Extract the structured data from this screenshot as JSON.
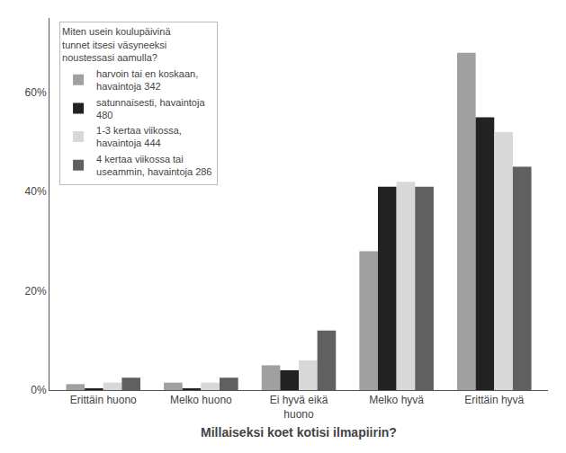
{
  "chart_data": {
    "type": "bar",
    "xlabel": "Millaiseksi koet kotisi ilmapiirin?",
    "legend_title": "Miten usein koulupäivinä\ntunnet itsesi väsyneeksi\nnoustessasi aamulla?",
    "categories": [
      "Erittäin huono",
      "Melko huono",
      "Ei hyvä eikä\nhuono",
      "Melko hyvä",
      "Erittäin hyvä"
    ],
    "series": [
      {
        "name": "harvoin tai en koskaan,\nhavaintoja 342",
        "color": "#a0a0a0",
        "values": [
          1.2,
          1.5,
          5.0,
          28.0,
          68.0
        ]
      },
      {
        "name": "satunnaisesti, havaintoja\n480",
        "color": "#222222",
        "values": [
          0.3,
          0.2,
          4.0,
          41.0,
          55.0
        ]
      },
      {
        "name": "1-3 kertaa viikossa,\nhavaintoja 444",
        "color": "#d8d8d8",
        "values": [
          1.5,
          1.5,
          6.0,
          42.0,
          52.0
        ]
      },
      {
        "name": "4 kertaa viikossa tai\nuseammin, havaintoja 286",
        "color": "#606060",
        "values": [
          2.5,
          2.5,
          12.0,
          41.0,
          45.0
        ]
      }
    ],
    "ylim": [
      0,
      75
    ],
    "yticks": [
      {
        "value": 0,
        "label": "0%"
      },
      {
        "value": 20,
        "label": "20%"
      },
      {
        "value": 40,
        "label": "40%"
      },
      {
        "value": 60,
        "label": "60%"
      }
    ],
    "grid": false,
    "legend": "upper left"
  }
}
